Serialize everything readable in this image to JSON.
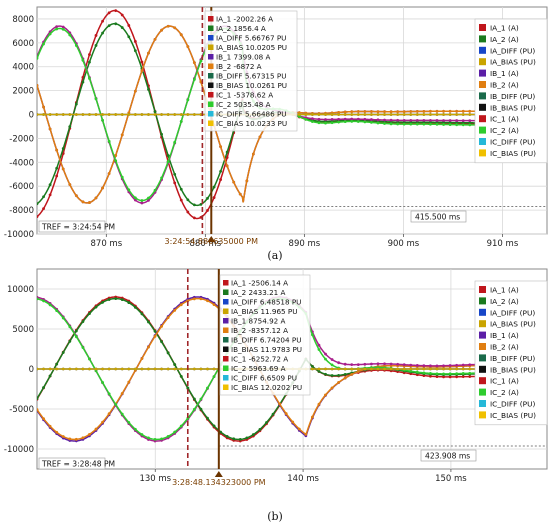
{
  "chart_data": [
    {
      "type": "line",
      "caption": "(a)",
      "xlim": [
        863,
        914.5
      ],
      "ylim": [
        -10000,
        9000
      ],
      "x_ticks": [
        "870 ms",
        "880 ms",
        "890 ms",
        "900 ms",
        "910 ms"
      ],
      "x_tick_values": [
        870,
        880,
        890,
        900,
        910
      ],
      "y_ticks": [
        "8000",
        "6000",
        "4000",
        "2000",
        "0",
        "-2000",
        "-4000",
        "-6000",
        "-8000",
        "-10000"
      ],
      "y_tick_values": [
        8000,
        6000,
        4000,
        2000,
        0,
        -2000,
        -4000,
        -6000,
        -8000,
        -10000
      ],
      "cursor_time_label": "3:24:54.880635000 PM",
      "cursor_ms": 880.6,
      "ref_cursor_ms": 879.7,
      "tref_label": "TREF = 3:24:54 PM",
      "delta_label": "415.500 ms",
      "fault_ms": 883.8,
      "freq_hz": 60,
      "series": [
        {
          "name": "IA_1 (A)",
          "color": "#c0161c",
          "amp": 8700,
          "phase_deg": 0,
          "post": [
            -3200,
            40,
            1200
          ]
        },
        {
          "name": "IA_2 (A)",
          "color": "#1a7a1e",
          "amp": 7600,
          "phase_deg": 0,
          "post": [
            -2800,
            40,
            1200
          ]
        },
        {
          "name": "IB_1 (A)",
          "color": "#5b1ea6",
          "amp": 7400,
          "phase_deg": -120,
          "post": [
            800,
            25,
            600
          ]
        },
        {
          "name": "IB_2 (A)",
          "color": "#e07e10",
          "amp": 7400,
          "phase_deg": -120,
          "post": [
            800,
            25,
            600
          ]
        },
        {
          "name": "IC_1 (A)",
          "color": "#a81f8c",
          "amp": 7400,
          "phase_deg": 120,
          "post": [
            -1500,
            25,
            600
          ]
        },
        {
          "name": "IC_2 (A)",
          "color": "#2ecc2e",
          "amp": 7200,
          "phase_deg": 120,
          "post": [
            -3500,
            40,
            1500
          ]
        },
        {
          "name": "IA_DIFF (PU)",
          "color": "#1746c8",
          "amp": 0,
          "phase_deg": 0,
          "post": [
            0,
            10,
            0
          ]
        },
        {
          "name": "IA_BIAS (PU)",
          "color": "#c9a400",
          "amp": 0,
          "phase_deg": 0,
          "post": [
            0,
            10,
            0
          ]
        }
      ],
      "readout": [
        {
          "text": "IA_1  -2002.26 A",
          "color": "#c0161c"
        },
        {
          "text": "IA_2  1856.4 A",
          "color": "#1a7a1e"
        },
        {
          "text": "IA_DIFF  5.66767 PU",
          "color": "#1746c8"
        },
        {
          "text": "IA_BIAS  10.0205 PU",
          "color": "#c9a400"
        },
        {
          "text": "IB_1  7399.08 A",
          "color": "#5b1ea6"
        },
        {
          "text": "IB_2  -6872 A",
          "color": "#e07e10"
        },
        {
          "text": "IB_DIFF  5.67315 PU",
          "color": "#1a6a4a"
        },
        {
          "text": "IB_BIAS  10.0261 PU",
          "color": "#111111"
        },
        {
          "text": "IC_1  -5378.62 A",
          "color": "#c0161c"
        },
        {
          "text": "IC_2  5035.48 A",
          "color": "#2ecc2e"
        },
        {
          "text": "IC_DIFF  5.66486 PU",
          "color": "#25b8d8"
        },
        {
          "text": "IC_BIAS  10.0233 PU",
          "color": "#f0c000"
        }
      ],
      "legend": [
        {
          "label": "IA_1 (A)",
          "color": "#c0161c"
        },
        {
          "label": "IA_2 (A)",
          "color": "#1a7a1e"
        },
        {
          "label": "IA_DIFF (PU)",
          "color": "#1746c8"
        },
        {
          "label": "IA_BIAS (PU)",
          "color": "#c9a400"
        },
        {
          "label": "IB_1 (A)",
          "color": "#5b1ea6"
        },
        {
          "label": "IB_2 (A)",
          "color": "#e07e10"
        },
        {
          "label": "IB_DIFF (PU)",
          "color": "#1a6a4a"
        },
        {
          "label": "IB_BIAS (PU)",
          "color": "#111111"
        },
        {
          "label": "IC_1 (A)",
          "color": "#c0161c"
        },
        {
          "label": "IC_2 (A)",
          "color": "#2ecc2e"
        },
        {
          "label": "IC_DIFF (PU)",
          "color": "#25b8d8"
        },
        {
          "label": "IC_BIAS (PU)",
          "color": "#f0c000"
        }
      ]
    },
    {
      "type": "line",
      "caption": "(b)",
      "xlim": [
        122,
        156.5
      ],
      "ylim": [
        -12500,
        12500
      ],
      "x_ticks": [
        "130 ms",
        "140 ms",
        "150 ms"
      ],
      "x_tick_values": [
        130,
        140,
        150
      ],
      "y_ticks": [
        "10000",
        "5000",
        "0",
        "-5000",
        "-10000"
      ],
      "y_tick_values": [
        10000,
        5000,
        0,
        -5000,
        -10000
      ],
      "cursor_time_label": "3:28:48.134323000 PM",
      "cursor_ms": 134.3,
      "ref_cursor_ms": 132.2,
      "tref_label": "TREF = 3:28:48 PM",
      "delta_label": "423.908 ms",
      "fault_ms": 140.2,
      "freq_hz": 60,
      "series": [
        {
          "name": "IA_1 (A)",
          "color": "#c0161c",
          "amp": 9000,
          "phase_deg": -140,
          "post": [
            -4500,
            35,
            1500
          ]
        },
        {
          "name": "IA_2 (A)",
          "color": "#1a7a1e",
          "amp": 8800,
          "phase_deg": -140,
          "post": [
            -3000,
            35,
            1500
          ]
        },
        {
          "name": "IB_1 (A)",
          "color": "#5b1ea6",
          "amp": 9000,
          "phase_deg": 100,
          "post": [
            1500,
            25,
            900
          ]
        },
        {
          "name": "IB_2 (A)",
          "color": "#e07e10",
          "amp": 8800,
          "phase_deg": 100,
          "post": [
            1500,
            25,
            900
          ]
        },
        {
          "name": "IC_1 (A)",
          "color": "#a81f8c",
          "amp": 9000,
          "phase_deg": -20,
          "post": [
            2000,
            25,
            900
          ]
        },
        {
          "name": "IC_2 (A)",
          "color": "#2ecc2e",
          "amp": 8800,
          "phase_deg": -20,
          "post": [
            -2500,
            35,
            1500
          ]
        },
        {
          "name": "IA_DIFF (PU)",
          "color": "#1746c8",
          "amp": 0,
          "phase_deg": 0,
          "post": [
            0,
            10,
            0
          ]
        },
        {
          "name": "IA_BIAS (PU)",
          "color": "#c9a400",
          "amp": 0,
          "phase_deg": 0,
          "post": [
            0,
            10,
            0
          ]
        }
      ],
      "readout": [
        {
          "text": "IA_1  -2506.14 A",
          "color": "#c0161c"
        },
        {
          "text": "IA_2  2433.21 A",
          "color": "#1a7a1e"
        },
        {
          "text": "IA_DIFF  6.48518 PU",
          "color": "#1746c8"
        },
        {
          "text": "IA_BIAS  11.965 PU",
          "color": "#c9a400"
        },
        {
          "text": "IB_1  8754.92 A",
          "color": "#5b1ea6"
        },
        {
          "text": "IB_2  -8357.12 A",
          "color": "#e07e10"
        },
        {
          "text": "IB_DIFF  6.74204 PU",
          "color": "#1a6a4a"
        },
        {
          "text": "IB_BIAS  11.9783 PU",
          "color": "#111111"
        },
        {
          "text": "IC_1  -6252.72 A",
          "color": "#c0161c"
        },
        {
          "text": "IC_2  5963.69 A",
          "color": "#2ecc2e"
        },
        {
          "text": "IC_DIFF  6.6509 PU",
          "color": "#25b8d8"
        },
        {
          "text": "IC_BIAS  12.0202 PU",
          "color": "#f0c000"
        }
      ],
      "legend": [
        {
          "label": "IA_1 (A)",
          "color": "#c0161c"
        },
        {
          "label": "IA_2 (A)",
          "color": "#1a7a1e"
        },
        {
          "label": "IA_DIFF (PU)",
          "color": "#1746c8"
        },
        {
          "label": "IA_BIAS (PU)",
          "color": "#c9a400"
        },
        {
          "label": "IB_1 (A)",
          "color": "#5b1ea6"
        },
        {
          "label": "IB_2 (A)",
          "color": "#e07e10"
        },
        {
          "label": "IB_DIFF (PU)",
          "color": "#1a6a4a"
        },
        {
          "label": "IB_BIAS (PU)",
          "color": "#111111"
        },
        {
          "label": "IC_1 (A)",
          "color": "#c0161c"
        },
        {
          "label": "IC_2 (A)",
          "color": "#2ecc2e"
        },
        {
          "label": "IC_DIFF (PU)",
          "color": "#25b8d8"
        },
        {
          "label": "IC_BIAS (PU)",
          "color": "#f0c000"
        }
      ]
    }
  ]
}
